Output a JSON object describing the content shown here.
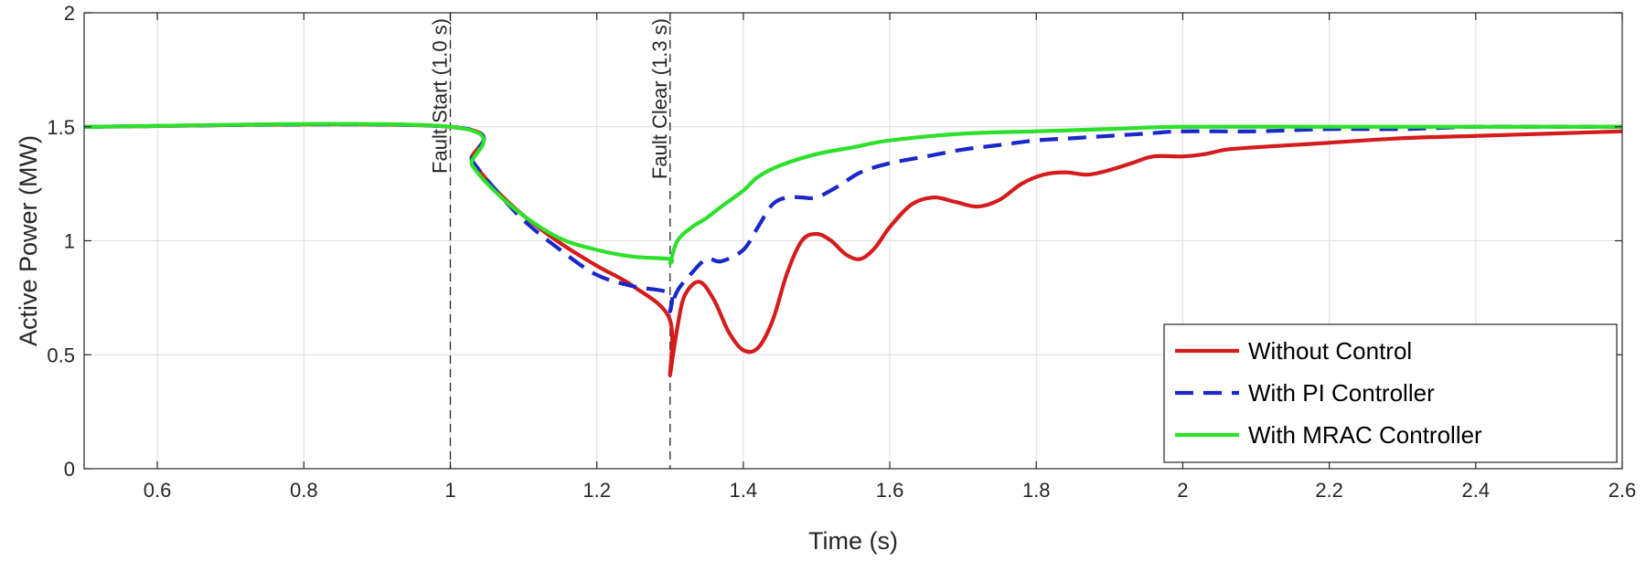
{
  "chart_data": {
    "type": "line",
    "title": "",
    "xlabel": "Time (s)",
    "ylabel": "Active Power (MW)",
    "xlim": [
      0.5,
      2.6
    ],
    "ylim": [
      0,
      2
    ],
    "xticks": [
      0.6,
      0.8,
      1,
      1.2,
      1.4,
      1.6,
      1.8,
      2,
      2.2,
      2.4,
      2.6
    ],
    "xtick_labels": [
      "0.6",
      "0.8",
      "1",
      "1.2",
      "1.4",
      "1.6",
      "1.8",
      "2",
      "2.2",
      "2.4",
      "2.6"
    ],
    "yticks": [
      0,
      0.5,
      1,
      1.5,
      2
    ],
    "ytick_labels": [
      "0",
      "0.5",
      "1",
      "1.5",
      "2"
    ],
    "grid": true,
    "legend_position": "bottom-right",
    "annotations": [
      {
        "x": 1.0,
        "text": "Fault Start (1.0 s)"
      },
      {
        "x": 1.3,
        "text": "Fault Clear (1.3 s)"
      }
    ],
    "series": [
      {
        "name": "Without Control",
        "color": "#d41c1c",
        "style": "solid",
        "x": [
          0.5,
          1.0,
          1.03,
          1.06,
          1.1,
          1.15,
          1.2,
          1.25,
          1.299,
          1.3,
          1.31,
          1.32,
          1.34,
          1.36,
          1.38,
          1.4,
          1.42,
          1.44,
          1.46,
          1.48,
          1.5,
          1.52,
          1.54,
          1.56,
          1.58,
          1.6,
          1.63,
          1.66,
          1.69,
          1.72,
          1.75,
          1.78,
          1.81,
          1.84,
          1.87,
          1.9,
          1.93,
          1.96,
          2.0,
          2.03,
          2.06,
          2.1,
          2.15,
          2.2,
          2.3,
          2.4,
          2.5,
          2.6
        ],
        "y": [
          1.5,
          1.5,
          1.35,
          1.23,
          1.11,
          0.99,
          0.89,
          0.8,
          0.66,
          0.41,
          0.62,
          0.76,
          0.82,
          0.74,
          0.6,
          0.52,
          0.53,
          0.65,
          0.86,
          1.0,
          1.03,
          1.0,
          0.94,
          0.92,
          0.97,
          1.06,
          1.16,
          1.19,
          1.17,
          1.15,
          1.18,
          1.25,
          1.29,
          1.3,
          1.29,
          1.31,
          1.34,
          1.37,
          1.37,
          1.38,
          1.4,
          1.41,
          1.42,
          1.43,
          1.45,
          1.46,
          1.47,
          1.48
        ]
      },
      {
        "name": "With PI Controller",
        "color": "#1a27c9",
        "style": "dashed",
        "x": [
          0.5,
          1.0,
          1.03,
          1.06,
          1.1,
          1.15,
          1.2,
          1.25,
          1.299,
          1.3,
          1.31,
          1.33,
          1.35,
          1.37,
          1.4,
          1.42,
          1.44,
          1.46,
          1.48,
          1.5,
          1.53,
          1.56,
          1.6,
          1.65,
          1.7,
          1.75,
          1.8,
          1.85,
          1.9,
          1.95,
          2.0,
          2.1,
          2.2,
          2.3,
          2.4,
          2.5,
          2.6
        ],
        "y": [
          1.5,
          1.5,
          1.35,
          1.23,
          1.09,
          0.96,
          0.85,
          0.8,
          0.77,
          0.69,
          0.78,
          0.86,
          0.92,
          0.91,
          0.96,
          1.06,
          1.16,
          1.19,
          1.19,
          1.19,
          1.24,
          1.3,
          1.34,
          1.37,
          1.4,
          1.42,
          1.44,
          1.45,
          1.46,
          1.47,
          1.48,
          1.48,
          1.49,
          1.49,
          1.5,
          1.5,
          1.5
        ]
      },
      {
        "name": "With MRAC Controller",
        "color": "#2de02a",
        "style": "solid",
        "x": [
          0.5,
          1.0,
          1.03,
          1.06,
          1.1,
          1.15,
          1.2,
          1.25,
          1.299,
          1.3,
          1.31,
          1.33,
          1.35,
          1.37,
          1.4,
          1.42,
          1.45,
          1.5,
          1.55,
          1.6,
          1.7,
          1.8,
          1.9,
          2.0,
          2.2,
          2.4,
          2.6
        ],
        "y": [
          1.5,
          1.5,
          1.33,
          1.22,
          1.11,
          1.01,
          0.96,
          0.93,
          0.92,
          0.9,
          1.0,
          1.06,
          1.1,
          1.15,
          1.22,
          1.28,
          1.33,
          1.38,
          1.41,
          1.44,
          1.47,
          1.48,
          1.49,
          1.5,
          1.5,
          1.5,
          1.5
        ]
      }
    ]
  }
}
